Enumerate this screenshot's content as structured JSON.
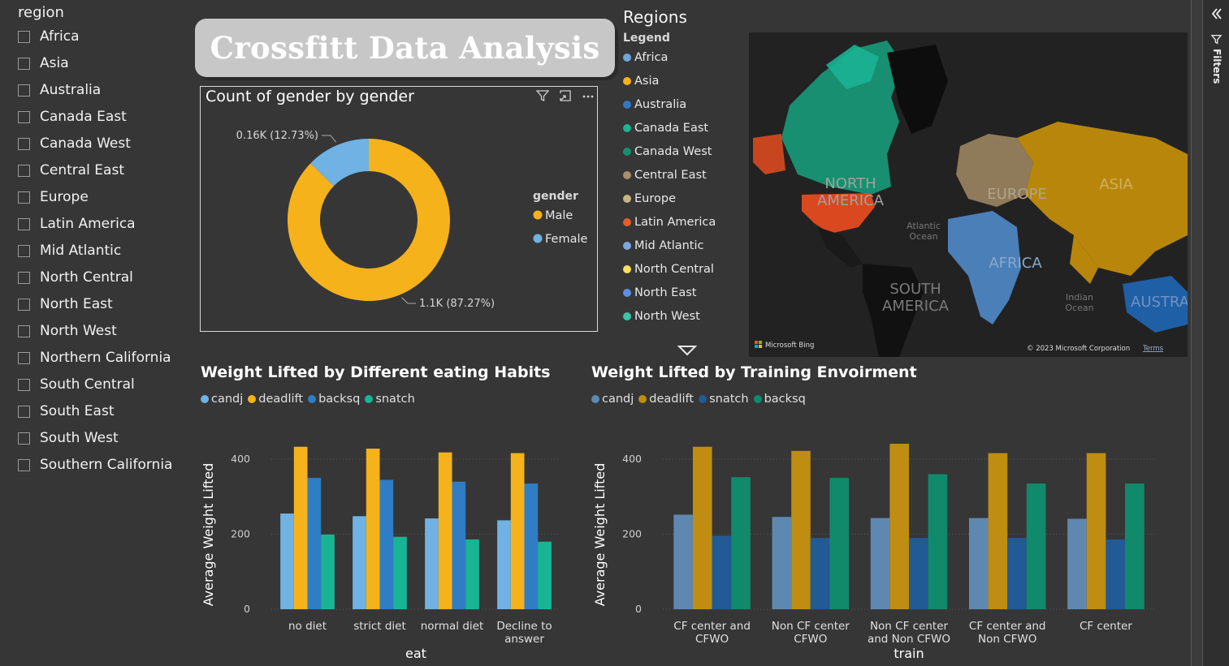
{
  "slicer": {
    "title": "region",
    "items": [
      "Africa",
      "Asia",
      "Australia",
      "Canada East",
      "Canada West",
      "Central East",
      "Europe",
      "Latin America",
      "Mid Atlantic",
      "North Central",
      "North East",
      "North West",
      "Northern California",
      "South Central",
      "South East",
      "South West",
      "Southern California"
    ]
  },
  "banner": {
    "title": "Crossfitt Data Analysis"
  },
  "donut": {
    "title": "Count of gender by gender",
    "legend_title": "gender",
    "chart_data": {
      "type": "pie",
      "categories": [
        "Male",
        "Female"
      ],
      "values": [
        87.27,
        12.73
      ],
      "labels": [
        "1.1K (87.27%)",
        "0.16K (12.73%)"
      ],
      "colors": [
        "#f5b21b",
        "#6fb2e3"
      ]
    }
  },
  "map": {
    "title": "Regions",
    "legend_title": "Legend",
    "legend": [
      {
        "label": "Africa",
        "color": "#6fa7dc"
      },
      {
        "label": "Asia",
        "color": "#f5b21b"
      },
      {
        "label": "Australia",
        "color": "#2f78c2"
      },
      {
        "label": "Canada East",
        "color": "#1ab394"
      },
      {
        "label": "Canada West",
        "color": "#178f70"
      },
      {
        "label": "Central East",
        "color": "#a88f6b"
      },
      {
        "label": "Europe",
        "color": "#c9b57f"
      },
      {
        "label": "Latin America",
        "color": "#e55d2d"
      },
      {
        "label": "Mid Atlantic",
        "color": "#7da6e0"
      },
      {
        "label": "North Central",
        "color": "#f7e05a"
      },
      {
        "label": "North East",
        "color": "#5b8ee8"
      },
      {
        "label": "North West",
        "color": "#3cc4a8"
      }
    ],
    "labels": {
      "north_america": "NORTH AMERICA",
      "europe": "EUROPE",
      "asia": "ASIA",
      "africa": "AFRICA",
      "south_america": "SOUTH AMERICA",
      "atlantic": "Atlantic Ocean",
      "indian": "Indian Ocean",
      "australia": "AUSTRA"
    },
    "attribution_left": "Microsoft Bing",
    "attribution_right": "© 2023 Microsoft Corporation",
    "terms": "Terms"
  },
  "chart_data": [
    {
      "type": "bar",
      "title": "Weight Lifted by Different eating Habits",
      "xlabel": "eat",
      "ylabel": "Average Weight Lifted",
      "ylim": [
        0,
        460
      ],
      "yticks": [
        0,
        200,
        400
      ],
      "categories": [
        [
          "no diet"
        ],
        [
          "strict diet"
        ],
        [
          "normal diet"
        ],
        [
          "Decline to",
          "answer"
        ]
      ],
      "series": [
        {
          "name": "candj",
          "color": "#6fb2e3",
          "values": [
            255,
            248,
            242,
            237
          ]
        },
        {
          "name": "deadlift",
          "color": "#f5b21b",
          "values": [
            433,
            428,
            418,
            416
          ]
        },
        {
          "name": "backsq",
          "color": "#2f7dc4",
          "values": [
            350,
            345,
            340,
            335
          ]
        },
        {
          "name": "snatch",
          "color": "#18b595",
          "values": [
            199,
            193,
            186,
            180
          ]
        }
      ]
    },
    {
      "type": "bar",
      "title": "Weight Lifted by Training Envoirment",
      "xlabel": "train",
      "ylabel": "Average Weight Lifted",
      "ylim": [
        0,
        460
      ],
      "yticks": [
        0,
        200,
        400
      ],
      "categories": [
        [
          "CF center and",
          "CFWO"
        ],
        [
          "Non CF center",
          "CFWO"
        ],
        [
          "Non CF center",
          "and Non CFWO"
        ],
        [
          "CF center and",
          "Non CFWO"
        ],
        [
          "CF center"
        ]
      ],
      "series": [
        {
          "name": "candj",
          "color": "#5f88b0",
          "values": [
            252,
            246,
            243,
            243,
            241
          ]
        },
        {
          "name": "deadlift",
          "color": "#be8d11",
          "values": [
            433,
            422,
            441,
            416,
            416
          ]
        },
        {
          "name": "snatch",
          "color": "#215a94",
          "values": [
            196,
            190,
            190,
            190,
            186
          ]
        },
        {
          "name": "backsq",
          "color": "#118a6c",
          "values": [
            352,
            350,
            360,
            335,
            335
          ]
        }
      ]
    }
  ],
  "filters_pane": {
    "label": "Filters"
  }
}
